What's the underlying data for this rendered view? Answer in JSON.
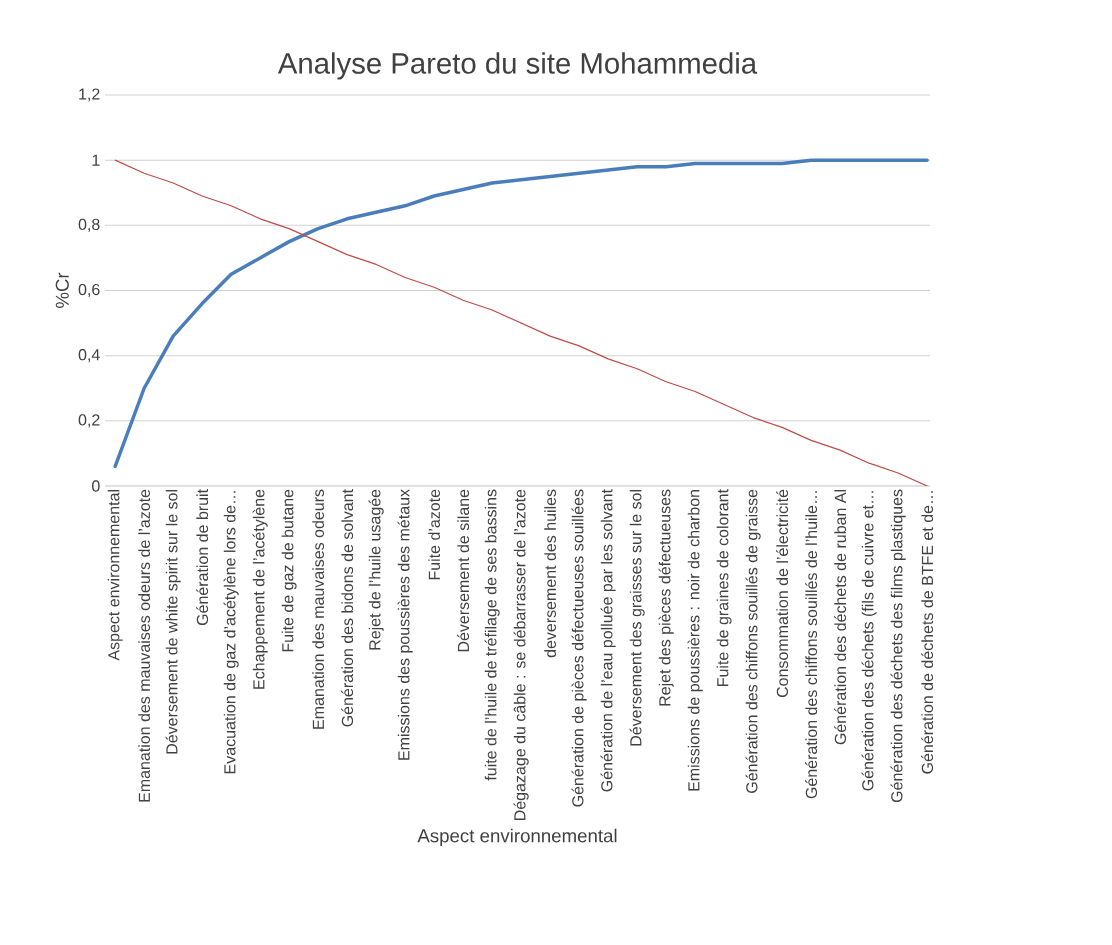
{
  "chart_data": {
    "type": "line",
    "title": "Analyse Pareto du site Mohammedia",
    "xlabel": "Aspect environnemental",
    "ylabel": "%Cr",
    "categories": [
      "Aspect environnemental",
      "Emanation des mauvaises odeurs de l’azote",
      "Déversement de white spirit sur le sol",
      "Génération de bruit",
      "Evacuation de gaz d’acétylène lors de…",
      "Echappement de l’acétylène",
      "Fuite de gaz de butane",
      "Emanation des mauvaises odeurs",
      "Génération des bidons de solvant",
      "Rejet de l’huile usagée",
      "Emissions des poussières des métaux",
      "Fuite d’azote",
      "Déversement de silane",
      "fuite de l’huile de tréfilage de ses bassins",
      "Dégazage du câble : se débarrasser de l’azote",
      "deversement des huiles",
      "Génération de pièces défectueuses souillées",
      "Génération de l’eau polluée par les solvant",
      "Déversement des graisses sur le sol",
      "Rejet des pièces défectueuses",
      "Emissions de poussières : noir de charbon",
      "Fuite de graines de colorant",
      "Génération des chiffons souillés de graisse",
      "Consommation de l’électricité",
      "Génération des chiffons souillés de l’huile…",
      "Génération des  déchets de ruban  Al",
      "Génération des déchets (fils de cuivre et…",
      "Génération des déchets des films  plastiques",
      "Génération  de déchets de BTFE et de…"
    ],
    "series": [
      {
        "color": "#4a7ebb",
        "values": [
          0.06,
          0.3,
          0.46,
          0.56,
          0.65,
          0.7,
          0.75,
          0.79,
          0.82,
          0.84,
          0.86,
          0.89,
          0.91,
          0.93,
          0.94,
          0.95,
          0.96,
          0.97,
          0.98,
          0.98,
          0.99,
          0.99,
          0.99,
          0.99,
          1.0,
          1.0,
          1.0,
          1.0,
          1.0
        ]
      },
      {
        "color": "#be4b48",
        "values": [
          1.0,
          0.96,
          0.93,
          0.89,
          0.86,
          0.82,
          0.79,
          0.75,
          0.71,
          0.68,
          0.64,
          0.61,
          0.57,
          0.54,
          0.5,
          0.46,
          0.43,
          0.39,
          0.36,
          0.32,
          0.29,
          0.25,
          0.21,
          0.18,
          0.14,
          0.11,
          0.07,
          0.04,
          0.0
        ]
      }
    ],
    "ylim": [
      0,
      1.2
    ],
    "yticks": [
      0,
      {
        "value": 0.2,
        "label": "0,2"
      },
      {
        "value": 0.4,
        "label": "0,4"
      },
      {
        "value": 0.6,
        "label": "0,6"
      },
      {
        "value": 0.8,
        "label": "0,8"
      },
      1,
      {
        "value": 1.2,
        "label": "1,2"
      }
    ],
    "grid": "y",
    "marker": "none",
    "line_style": "solid"
  }
}
